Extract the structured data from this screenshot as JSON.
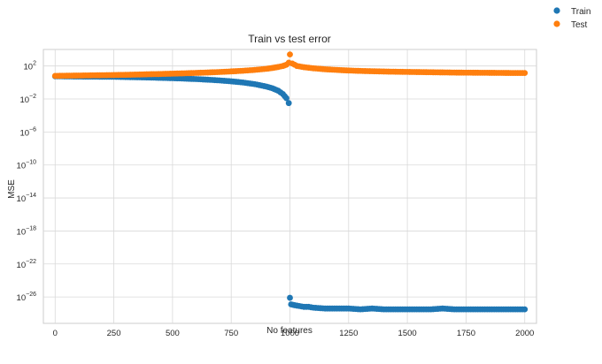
{
  "chart_data": {
    "type": "scatter",
    "title": "Train vs test error",
    "xlabel": "No features",
    "ylabel": "MSE",
    "xlim": [
      -50,
      2050
    ],
    "ylim_log10": [
      -29.2,
      4.0
    ],
    "yscale": "log",
    "grid": true,
    "legend_position": "upper-right-outside",
    "x_ticks": [
      0,
      250,
      500,
      750,
      1000,
      1250,
      1500,
      1750,
      2000
    ],
    "y_tick_exponents": [
      2,
      -2,
      -6,
      -10,
      -14,
      -18,
      -22,
      -26
    ],
    "series": [
      {
        "name": "Train",
        "color": "#1f77b4",
        "points_log10": [
          [
            0,
            0.75
          ],
          [
            50,
            0.74
          ],
          [
            100,
            0.72
          ],
          [
            150,
            0.71
          ],
          [
            200,
            0.7
          ],
          [
            250,
            0.69
          ],
          [
            300,
            0.66
          ],
          [
            350,
            0.63
          ],
          [
            400,
            0.6
          ],
          [
            450,
            0.56
          ],
          [
            500,
            0.52
          ],
          [
            550,
            0.47
          ],
          [
            600,
            0.41
          ],
          [
            650,
            0.34
          ],
          [
            700,
            0.25
          ],
          [
            750,
            0.14
          ],
          [
            800,
            0.0
          ],
          [
            850,
            -0.2
          ],
          [
            900,
            -0.5
          ],
          [
            925,
            -0.7
          ],
          [
            950,
            -1.0
          ],
          [
            970,
            -1.4
          ],
          [
            985,
            -1.9
          ],
          [
            995,
            -2.5
          ],
          [
            1000,
            -26.1
          ],
          [
            1005,
            -26.9
          ],
          [
            1020,
            -27.0
          ],
          [
            1040,
            -27.1
          ],
          [
            1060,
            -27.2
          ],
          [
            1080,
            -27.2
          ],
          [
            1100,
            -27.3
          ],
          [
            1150,
            -27.4
          ],
          [
            1200,
            -27.4
          ],
          [
            1250,
            -27.4
          ],
          [
            1300,
            -27.5
          ],
          [
            1350,
            -27.4
          ],
          [
            1400,
            -27.5
          ],
          [
            1450,
            -27.5
          ],
          [
            1500,
            -27.5
          ],
          [
            1550,
            -27.5
          ],
          [
            1600,
            -27.5
          ],
          [
            1650,
            -27.4
          ],
          [
            1700,
            -27.5
          ],
          [
            1750,
            -27.5
          ],
          [
            1800,
            -27.5
          ],
          [
            1850,
            -27.5
          ],
          [
            1900,
            -27.5
          ],
          [
            1950,
            -27.5
          ],
          [
            2000,
            -27.5
          ]
        ]
      },
      {
        "name": "Test",
        "color": "#ff7f0e",
        "points_log10": [
          [
            0,
            0.8
          ],
          [
            50,
            0.82
          ],
          [
            100,
            0.84
          ],
          [
            150,
            0.86
          ],
          [
            200,
            0.88
          ],
          [
            250,
            0.9
          ],
          [
            300,
            0.93
          ],
          [
            350,
            0.96
          ],
          [
            400,
            1.0
          ],
          [
            450,
            1.03
          ],
          [
            500,
            1.07
          ],
          [
            550,
            1.11
          ],
          [
            600,
            1.16
          ],
          [
            650,
            1.21
          ],
          [
            700,
            1.27
          ],
          [
            750,
            1.34
          ],
          [
            800,
            1.42
          ],
          [
            850,
            1.52
          ],
          [
            900,
            1.66
          ],
          [
            925,
            1.76
          ],
          [
            950,
            1.88
          ],
          [
            970,
            2.0
          ],
          [
            985,
            2.15
          ],
          [
            995,
            2.4
          ],
          [
            1000,
            3.4
          ],
          [
            1010,
            2.3
          ],
          [
            1030,
            2.0
          ],
          [
            1060,
            1.85
          ],
          [
            1100,
            1.72
          ],
          [
            1150,
            1.6
          ],
          [
            1200,
            1.52
          ],
          [
            1250,
            1.45
          ],
          [
            1300,
            1.4
          ],
          [
            1350,
            1.36
          ],
          [
            1400,
            1.33
          ],
          [
            1450,
            1.3
          ],
          [
            1500,
            1.28
          ],
          [
            1550,
            1.26
          ],
          [
            1600,
            1.24
          ],
          [
            1650,
            1.22
          ],
          [
            1700,
            1.2
          ],
          [
            1750,
            1.19
          ],
          [
            1800,
            1.18
          ],
          [
            1850,
            1.17
          ],
          [
            1900,
            1.16
          ],
          [
            1950,
            1.15
          ],
          [
            2000,
            1.15
          ]
        ]
      }
    ]
  }
}
